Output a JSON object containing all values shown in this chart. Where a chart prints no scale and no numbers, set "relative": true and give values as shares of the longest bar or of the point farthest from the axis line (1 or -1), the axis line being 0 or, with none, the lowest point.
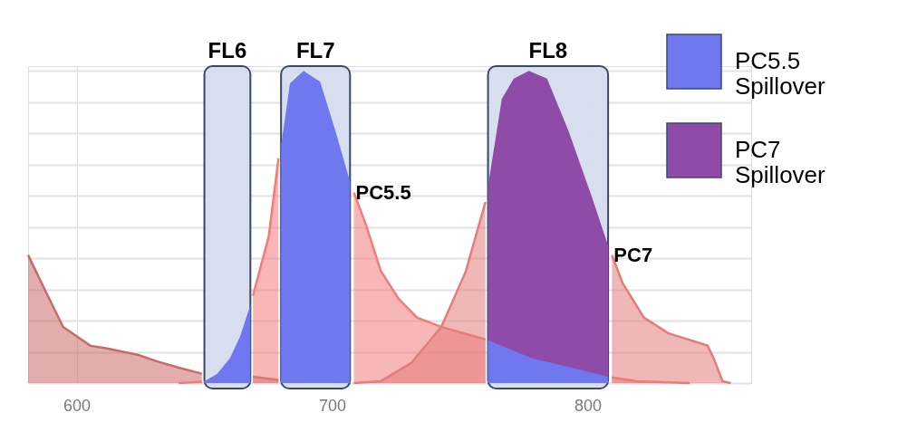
{
  "chart_data": {
    "type": "area",
    "relative": true,
    "xlim": [
      581,
      864
    ],
    "xticks": [
      600,
      700,
      800
    ],
    "grid": true,
    "legend": "top right",
    "series": [
      {
        "color": "#c86a6a",
        "x": [
          581,
          588.7,
          594.7,
          605.3,
          612.4,
          624.2,
          631.3,
          639.7,
          649,
          659,
          669,
          679
        ],
        "values": [
          0.41,
          0.28,
          0.18,
          0.12,
          0.11,
          0.09,
          0.07,
          0.05,
          0.03,
          null,
          0.02,
          0.01
        ]
      },
      {
        "color": "#f27b7b",
        "x": [
          640,
          649,
          659,
          669,
          675.2,
          679,
          693,
          708.5,
          713.1,
          719,
          726,
          733.2,
          742.7,
          760,
          785,
          809.5,
          819.5,
          840
        ],
        "values": [
          0,
          0.004,
          null,
          0.28,
          0.47,
          0.72,
          null,
          0.61,
          0.51,
          0.36,
          0.27,
          0.21,
          0.18,
          0.14,
          null,
          0.018,
          0.006,
          0
        ]
      },
      {
        "color": "#e47c7c",
        "x": [
          708.5,
          719,
          730.9,
          742.7,
          752.2,
          760,
          785,
          809.5,
          813.7,
          822,
          831.5,
          846.9,
          849.3,
          852.8,
          856
        ],
        "values": [
          0,
          0.006,
          0.064,
          0.18,
          0.355,
          0.58,
          null,
          0.41,
          0.32,
          0.21,
          0.16,
          0.12,
          0.08,
          0.006,
          0
        ]
      },
      {
        "name": "PC5.5 Spillover",
        "color": "#7078f0",
        "x": [
          650,
          655,
          660,
          664,
          668,
          674,
          680,
          683.5,
          688.8,
          695.3,
          701.2,
          707,
          734,
          761,
          778,
          796,
          808
        ],
        "values": [
          0.006,
          0.03,
          0.08,
          0.15,
          0.25,
          null,
          0.76,
          0.96,
          1.0,
          0.965,
          0.81,
          0.645,
          null,
          0.138,
          0.08,
          0.045,
          0.02
        ]
      },
      {
        "name": "PC7 Spillover",
        "color": "#8e4ba8",
        "x": [
          761,
          766.4,
          771.1,
          777,
          784.1,
          792.4,
          801.9,
          808
        ],
        "values": [
          0.63,
          0.91,
          0.975,
          1.0,
          0.975,
          0.81,
          0.59,
          0.44
        ]
      }
    ],
    "bands": [
      {
        "axis": "x",
        "from": 650,
        "to": 668,
        "label": "FL6",
        "color": "#d5deef"
      },
      {
        "axis": "x",
        "from": 680,
        "to": 707,
        "label": "FL7",
        "color": "#d5deef"
      },
      {
        "axis": "x",
        "from": 761,
        "to": 808,
        "label": "FL8",
        "color": "#d5deef"
      }
    ],
    "annotations": [
      {
        "text": "PC5.5",
        "x": 708.5,
        "y": 0.61
      },
      {
        "text": "PC7",
        "x": 809.5,
        "y": 0.41
      }
    ]
  }
}
